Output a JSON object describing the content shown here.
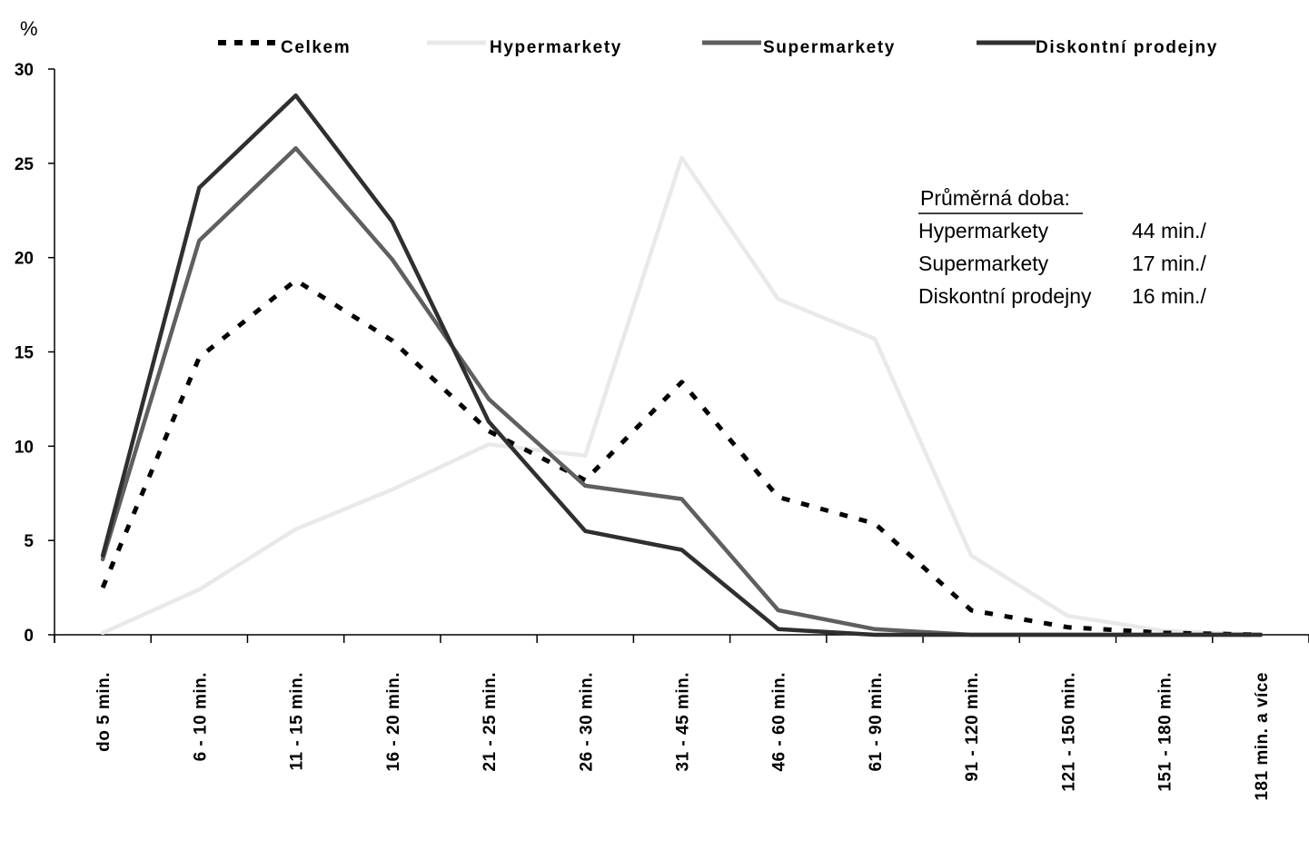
{
  "chart_data": {
    "type": "line",
    "ylabel": "%",
    "ylim": [
      0,
      30
    ],
    "y_ticks": [
      "0",
      "5",
      "10",
      "15",
      "20",
      "25",
      "30"
    ],
    "grid": false,
    "legend_position": "top",
    "categories": [
      "do 5 min.",
      "6 - 10 min.",
      "11 - 15 min.",
      "16 - 20 min.",
      "21 - 25 min.",
      "26 - 30 min.",
      "31 - 45 min.",
      "46 - 60 min.",
      "61 - 90 min.",
      "91 - 120 min.",
      "121 - 150 min.",
      "151 - 180 min.",
      "181 min. a více"
    ],
    "series": [
      {
        "name": "Celkem",
        "color": "#000000",
        "style": "dashed",
        "values": [
          2.5,
          14.7,
          18.8,
          15.6,
          10.8,
          8.2,
          13.4,
          7.3,
          5.9,
          1.3,
          0.4,
          0.1,
          0.0
        ]
      },
      {
        "name": "Hypermarkety",
        "color": "#e9e9e9",
        "style": "solid",
        "values": [
          0.1,
          2.4,
          5.6,
          7.7,
          10.1,
          9.5,
          25.3,
          17.8,
          15.7,
          4.2,
          1.0,
          0.2,
          0.0
        ]
      },
      {
        "name": "Supermarkety",
        "color": "#5f5f5f",
        "style": "solid",
        "values": [
          4.0,
          20.9,
          25.8,
          19.9,
          12.5,
          7.9,
          7.2,
          1.3,
          0.3,
          0.0,
          0.0,
          0.0,
          0.0
        ]
      },
      {
        "name": "Diskontní prodejny",
        "color": "#2f2f2f",
        "style": "solid",
        "values": [
          4.2,
          23.7,
          28.6,
          21.9,
          11.3,
          5.5,
          4.5,
          0.3,
          0.0,
          0.0,
          0.0,
          0.0,
          0.0
        ]
      }
    ],
    "annotation": {
      "title": "Průměrná doba:",
      "rows": [
        {
          "label": "Hypermarkety",
          "value": "44 min./"
        },
        {
          "label": "Supermarkety",
          "value": "17 min./"
        },
        {
          "label": "Diskontní prodejny",
          "value": "16 min./"
        }
      ]
    }
  }
}
